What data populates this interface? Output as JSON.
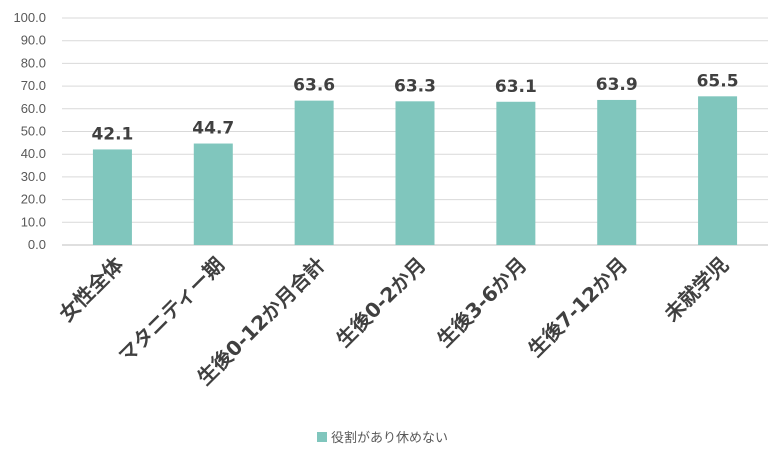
{
  "chart_data": {
    "type": "bar",
    "categories": [
      "女性全体",
      "マタニティー期",
      "生後0-12か月合計",
      "生後0-2か月",
      "生後3-6か月",
      "生後7-12か月",
      "未就学児"
    ],
    "series": [
      {
        "name": "役割があり休めない",
        "values": [
          42.1,
          44.7,
          63.6,
          63.3,
          63.1,
          63.9,
          65.5
        ]
      }
    ],
    "data_labels": [
      "42.1",
      "44.7",
      "63.6",
      "63.3",
      "63.1",
      "63.9",
      "65.5"
    ],
    "y_ticks": [
      "0.0",
      "10.0",
      "20.0",
      "30.0",
      "40.0",
      "50.0",
      "60.0",
      "70.0",
      "80.0",
      "90.0",
      "100.0"
    ],
    "ylim": [
      0,
      100
    ],
    "grid": true,
    "legend_position": "bottom",
    "bar_color": "#80c6bd"
  }
}
